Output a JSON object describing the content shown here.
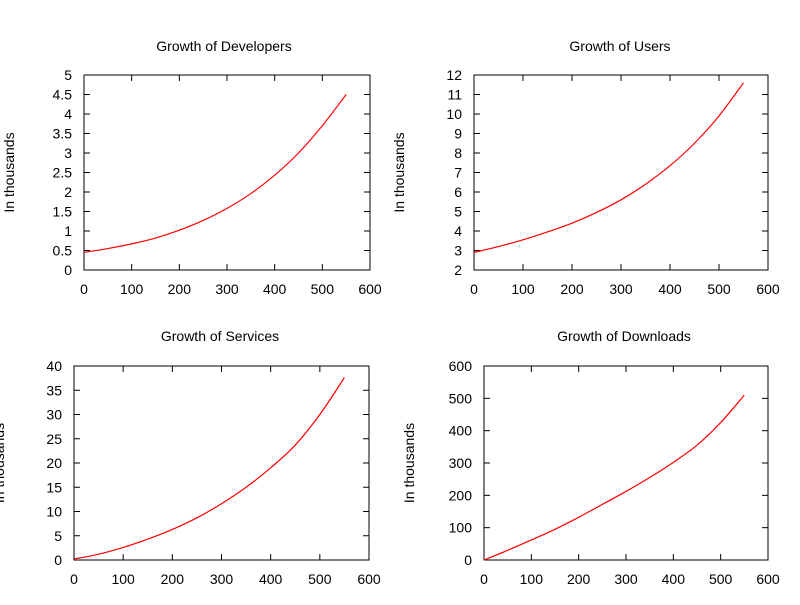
{
  "chart_data": [
    {
      "type": "line",
      "title": "Growth of Developers",
      "xlabel": "",
      "ylabel": "In thousands",
      "xlim": [
        0,
        600
      ],
      "ylim": [
        0,
        5
      ],
      "xticks": [
        0,
        100,
        200,
        300,
        400,
        500,
        600
      ],
      "yticks": [
        0,
        0.5,
        1,
        1.5,
        2,
        2.5,
        3,
        3.5,
        4,
        4.5,
        5
      ],
      "grid": false,
      "color": "#ff0000",
      "series": [
        {
          "x": [
            0,
            50,
            100,
            150,
            200,
            250,
            300,
            350,
            400,
            450,
            500,
            550
          ],
          "y": [
            0.45,
            0.55,
            0.67,
            0.82,
            1.02,
            1.27,
            1.58,
            1.96,
            2.43,
            3.0,
            3.7,
            4.5
          ]
        }
      ]
    },
    {
      "type": "line",
      "title": "Growth of Users",
      "xlabel": "",
      "ylabel": "In thousands",
      "xlim": [
        0,
        600
      ],
      "ylim": [
        2,
        12
      ],
      "xticks": [
        0,
        100,
        200,
        300,
        400,
        500,
        600
      ],
      "yticks": [
        2,
        3,
        4,
        5,
        6,
        7,
        8,
        9,
        10,
        11,
        12
      ],
      "grid": false,
      "color": "#ff0000",
      "series": [
        {
          "x": [
            0,
            50,
            100,
            150,
            200,
            250,
            300,
            350,
            400,
            450,
            500,
            550
          ],
          "y": [
            2.9,
            3.2,
            3.55,
            3.95,
            4.4,
            4.95,
            5.6,
            6.4,
            7.35,
            8.5,
            9.9,
            11.6
          ]
        }
      ]
    },
    {
      "type": "line",
      "title": "Growth of Services",
      "xlabel": "",
      "ylabel": "In thousands",
      "xlim": [
        0,
        600
      ],
      "ylim": [
        0,
        40
      ],
      "xticks": [
        0,
        100,
        200,
        300,
        400,
        500,
        600
      ],
      "yticks": [
        0,
        5,
        10,
        15,
        20,
        25,
        30,
        35,
        40
      ],
      "grid": false,
      "color": "#ff0000",
      "series": [
        {
          "x": [
            0,
            50,
            100,
            150,
            200,
            250,
            300,
            350,
            400,
            450,
            500,
            550
          ],
          "y": [
            0.2,
            1.2,
            2.6,
            4.3,
            6.3,
            8.7,
            11.6,
            15.0,
            19.0,
            23.7,
            30.0,
            37.6
          ]
        }
      ]
    },
    {
      "type": "line",
      "title": "Growth of Downloads",
      "xlabel": "",
      "ylabel": "In thousands",
      "xlim": [
        0,
        600
      ],
      "ylim": [
        0,
        600
      ],
      "xticks": [
        0,
        100,
        200,
        300,
        400,
        500,
        600
      ],
      "yticks": [
        0,
        100,
        200,
        300,
        400,
        500,
        600
      ],
      "grid": false,
      "color": "#ff0000",
      "series": [
        {
          "x": [
            0,
            50,
            100,
            150,
            200,
            250,
            300,
            350,
            400,
            450,
            500,
            550
          ],
          "y": [
            0,
            30,
            62,
            95,
            132,
            172,
            212,
            255,
            302,
            355,
            425,
            510
          ]
        }
      ]
    }
  ]
}
